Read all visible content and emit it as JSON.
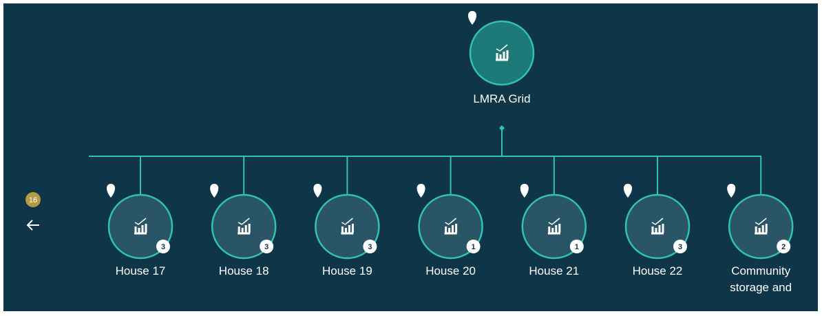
{
  "back_badge": "16",
  "root": {
    "label": "LMRA Grid"
  },
  "nodes": [
    {
      "label": "House 17",
      "badge": "3"
    },
    {
      "label": "House 18",
      "badge": "3"
    },
    {
      "label": "House 19",
      "badge": "3"
    },
    {
      "label": "House 20",
      "badge": "1"
    },
    {
      "label": "House 21",
      "badge": "1"
    },
    {
      "label": "House 22",
      "badge": "3"
    },
    {
      "label": "Community storage and",
      "badge": "2"
    }
  ]
}
